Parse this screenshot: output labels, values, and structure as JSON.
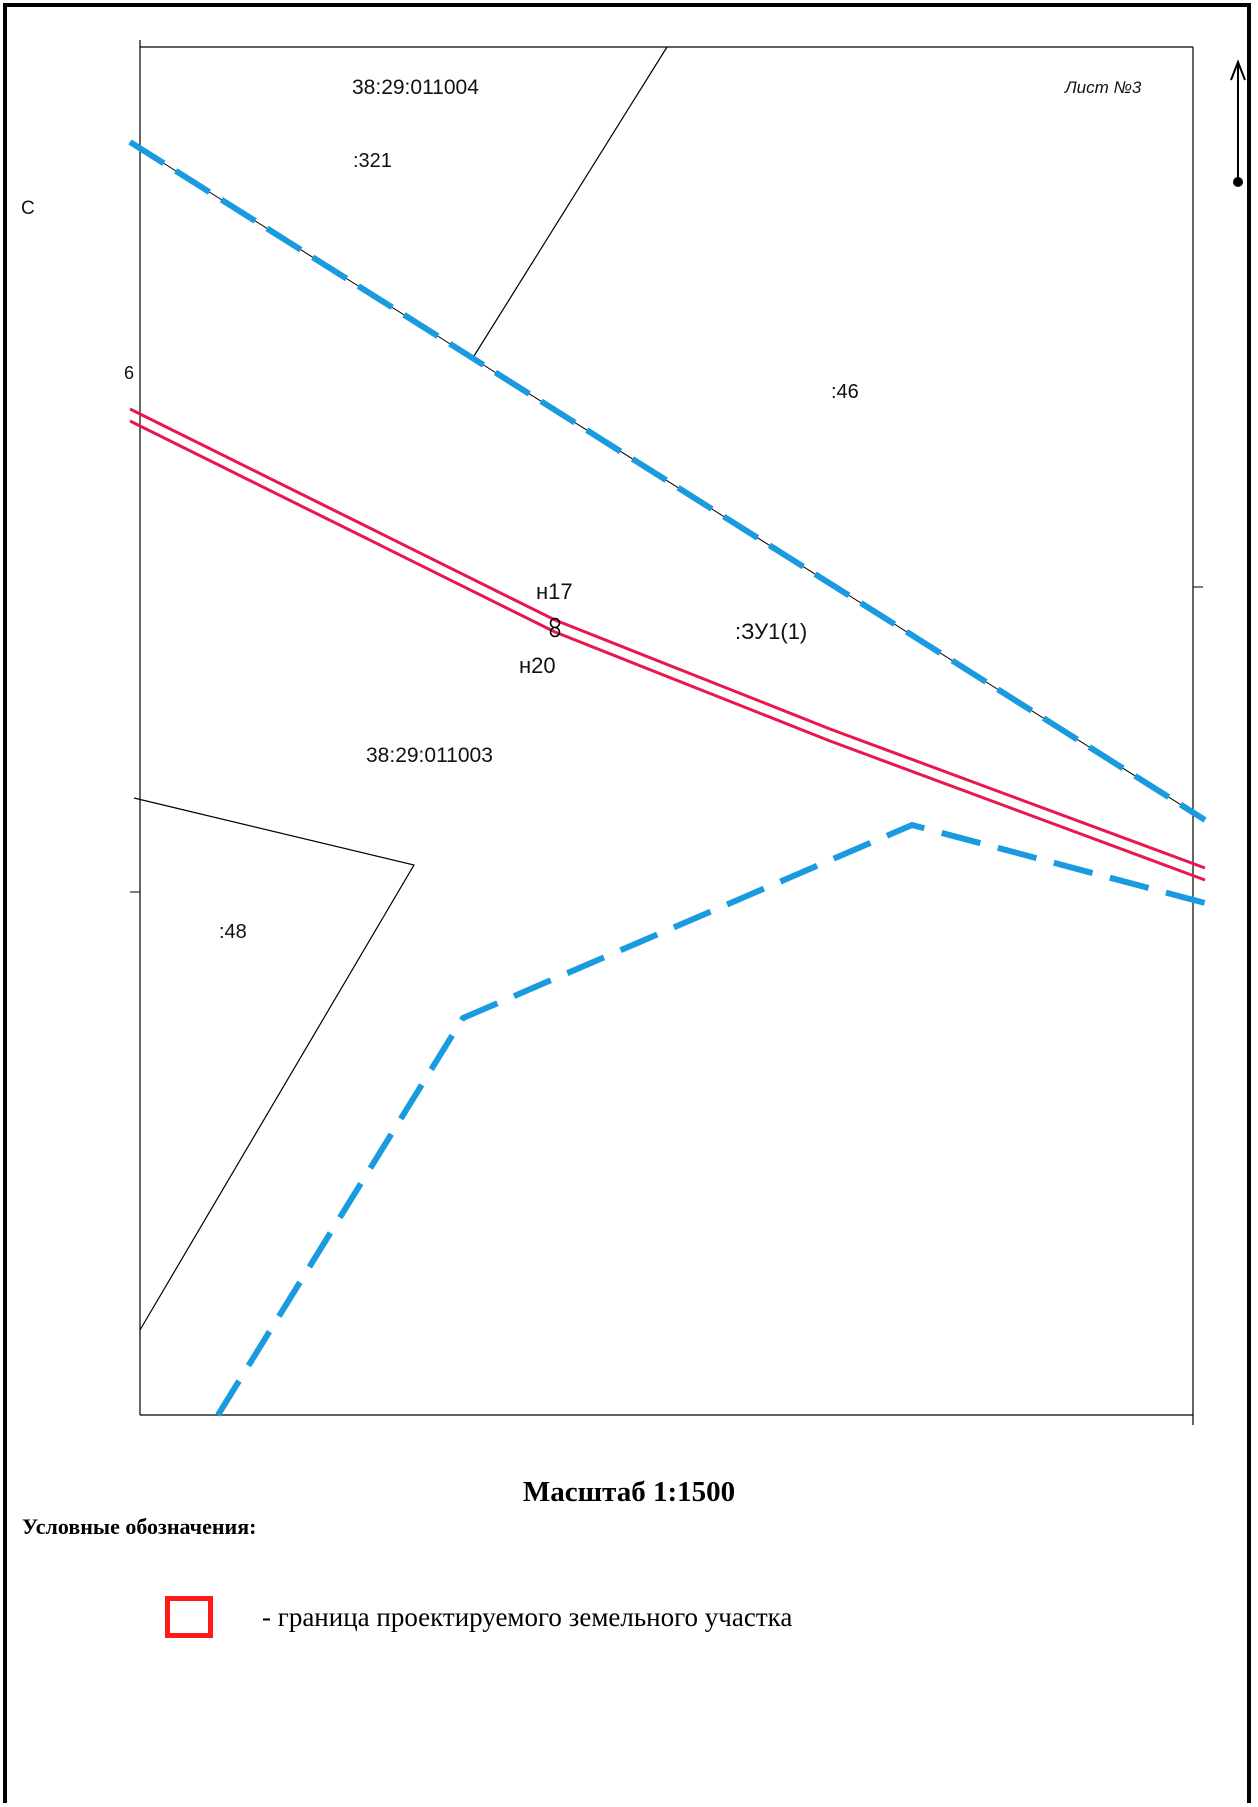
{
  "map": {
    "sheet_label": "Лист №3",
    "margin_letter": "С",
    "margin_fragment": "6",
    "north_arrow": "north-arrow-icon",
    "colors": {
      "cadastral_boundary": "#1a9be0",
      "project_boundary": "#e8174f",
      "parcel_lines": "#000000"
    },
    "labels": {
      "quarter_top": "38:29:011004",
      "parcel_321": ":321",
      "parcel_46": ":46",
      "point_n17": "н17",
      "point_n20": "н20",
      "parcel_zu1": ":ЗУ1(1)",
      "quarter_bottom": "38:29:011003",
      "parcel_48": ":48"
    }
  },
  "scale": {
    "title": "Масштаб 1:1500"
  },
  "legend": {
    "title": "Условные обозначения:",
    "items": [
      {
        "symbol": "red-square-outline",
        "color": "#ff1a1a",
        "text": "- граница проектируемого земельного участка"
      }
    ]
  }
}
